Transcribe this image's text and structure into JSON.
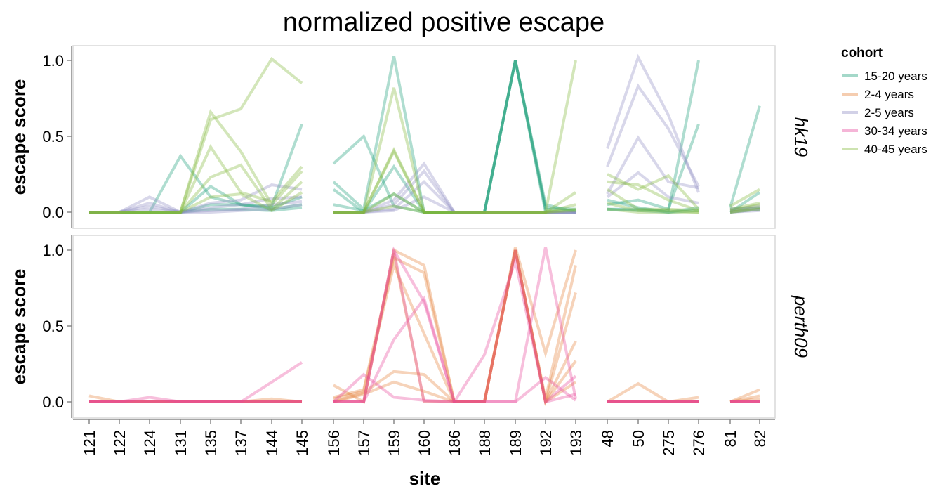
{
  "chart_data": {
    "type": "line",
    "title": "normalized positive escape",
    "xlabel": "site",
    "ylabel": "escape score",
    "ylim": [
      0,
      1.05
    ],
    "y_ticks": [
      "0.0",
      "0.5",
      "1.0"
    ],
    "legend_title": "cohort",
    "legend_position": "top-right",
    "grid": false,
    "site_groups": [
      [
        "121",
        "122",
        "124",
        "131",
        "135",
        "137",
        "144",
        "145"
      ],
      [
        "156",
        "157",
        "159",
        "160",
        "186",
        "188",
        "189",
        "192",
        "193"
      ],
      [
        "48",
        "50",
        "275",
        "276"
      ],
      [
        "81",
        "82"
      ]
    ],
    "cohorts": [
      {
        "name": "15-20 years",
        "color": "#1b9e77"
      },
      {
        "name": "2-4 years",
        "color": "#e6823a"
      },
      {
        "name": "2-5 years",
        "color": "#8f8cc4"
      },
      {
        "name": "30-34 years",
        "color": "#e7479a"
      },
      {
        "name": "40-45 years",
        "color": "#82b83a"
      }
    ],
    "facets": [
      {
        "name": "hk19",
        "series": [
          {
            "cohort": "15-20 years",
            "values": [
              [
                0,
                0,
                0,
                0.37,
                0.1,
                0.05,
                0.04,
                0.58
              ],
              [
                0.32,
                0.5,
                0.04,
                0,
                0,
                0,
                1,
                0.03,
                0.02
              ],
              [
                0.05,
                0.08,
                0.02,
                0.58
              ],
              [
                0.03,
                0.7
              ]
            ]
          },
          {
            "cohort": "15-20 years",
            "values": [
              [
                0,
                0,
                0,
                0,
                0.17,
                0.05,
                0.03,
                0.1
              ],
              [
                0.2,
                0.02,
                1.03,
                0,
                0,
                0,
                1,
                0.02,
                0.01
              ],
              [
                0.02,
                0.02,
                0.01,
                1.0
              ],
              [
                0,
                0.13
              ]
            ]
          },
          {
            "cohort": "15-20 years",
            "values": [
              [
                0,
                0,
                0,
                0,
                0.05,
                0.05,
                0.02,
                0.05
              ],
              [
                0.15,
                0,
                0.3,
                0,
                0,
                0,
                1,
                0.05,
                0
              ],
              [
                0.08,
                0.03,
                0,
                0.03
              ],
              [
                0.02,
                0.03
              ]
            ]
          },
          {
            "cohort": "15-20 years",
            "values": [
              [
                0,
                0,
                0,
                0,
                0.02,
                0.02,
                0.01,
                0.03
              ],
              [
                0.05,
                0.01,
                0.12,
                0,
                0,
                0,
                1,
                0,
                0
              ],
              [
                0.02,
                0.01,
                0,
                0.01
              ],
              [
                0,
                0.02
              ]
            ]
          },
          {
            "cohort": "2-5 years",
            "values": [
              [
                0,
                0,
                0.1,
                0,
                0.06,
                0.08,
                0.18,
                0.15
              ],
              [
                0,
                0,
                0.08,
                0.32,
                0,
                0,
                0,
                0,
                0
              ],
              [
                0.42,
                1.02,
                0.64,
                0.13
              ],
              [
                0.02,
                0.04
              ]
            ]
          },
          {
            "cohort": "2-5 years",
            "values": [
              [
                0,
                0,
                0.06,
                0,
                0.03,
                0.05,
                0.09,
                0.1
              ],
              [
                0,
                0,
                0.05,
                0.27,
                0,
                0,
                0,
                0,
                0
              ],
              [
                0.3,
                0.83,
                0.55,
                0.17
              ],
              [
                0.01,
                0.03
              ]
            ]
          },
          {
            "cohort": "2-5 years",
            "values": [
              [
                0,
                0,
                0.04,
                0,
                0.01,
                0.02,
                0.05,
                0.07
              ],
              [
                0,
                0,
                0.02,
                0.2,
                0,
                0,
                0,
                0,
                0
              ],
              [
                0.12,
                0.49,
                0.2,
                0.16
              ],
              [
                0,
                0.02
              ]
            ]
          },
          {
            "cohort": "2-5 years",
            "values": [
              [
                0,
                0,
                0.02,
                0,
                0,
                0.01,
                0.02,
                0.05
              ],
              [
                0,
                0,
                0.01,
                0.1,
                0,
                0,
                0,
                0,
                0
              ],
              [
                0.1,
                0.26,
                0.1,
                0.06
              ],
              [
                0,
                0.01
              ]
            ]
          },
          {
            "cohort": "40-45 years",
            "values": [
              [
                0,
                0,
                0,
                0,
                0.66,
                0.4,
                0.05,
                0.27
              ],
              [
                0,
                0,
                0.82,
                0,
                0,
                0,
                0,
                0,
                1.0
              ],
              [
                0.25,
                0.15,
                0.24,
                0.02
              ],
              [
                0.04,
                0.15
              ]
            ]
          },
          {
            "cohort": "40-45 years",
            "values": [
              [
                0,
                0,
                0,
                0,
                0.61,
                0.68,
                1.01,
                0.85
              ],
              [
                0,
                0,
                0.41,
                0,
                0,
                0,
                0,
                0,
                0.13
              ],
              [
                0.2,
                0.18,
                0.08,
                0.01
              ],
              [
                0.02,
                0.06
              ]
            ]
          },
          {
            "cohort": "40-45 years",
            "values": [
              [
                0,
                0,
                0,
                0,
                0.43,
                0.13,
                0.07,
                0.3
              ],
              [
                0,
                0,
                0.4,
                0,
                0,
                0,
                0,
                0,
                0.05
              ],
              [
                0.15,
                0.02,
                0.02,
                0.01
              ],
              [
                0.01,
                0.05
              ]
            ]
          },
          {
            "cohort": "40-45 years",
            "values": [
              [
                0,
                0,
                0,
                0,
                0.23,
                0.31,
                0.02,
                0.2
              ],
              [
                0,
                0,
                0.12,
                0,
                0,
                0,
                0,
                0,
                0.02
              ],
              [
                0.06,
                0.01,
                0.01,
                0
              ],
              [
                0,
                0.03
              ]
            ]
          },
          {
            "cohort": "40-45 years",
            "values": [
              [
                0,
                0,
                0,
                0,
                0.1,
                0.12,
                0.01,
                0.13
              ],
              [
                0,
                0,
                0.04,
                0,
                0,
                0,
                0,
                0,
                0.01
              ],
              [
                0.02,
                0,
                0,
                0
              ],
              [
                0,
                0.02
              ]
            ]
          }
        ]
      },
      {
        "name": "perth09",
        "series": [
          {
            "cohort": "2-4 years",
            "values": [
              [
                0.04,
                0,
                0,
                0,
                0,
                0,
                0.02,
                0
              ],
              [
                0.11,
                0,
                1.0,
                0.9,
                0,
                0,
                1.02,
                0.32,
                1.0
              ],
              [
                0,
                0.12,
                0,
                0.03
              ],
              [
                0,
                0.08
              ]
            ]
          },
          {
            "cohort": "2-4 years",
            "values": [
              [
                0,
                0,
                0,
                0,
                0,
                0,
                0,
                0
              ],
              [
                0.03,
                0.08,
                0.95,
                0.85,
                0,
                0,
                1.0,
                0.02,
                0.9
              ],
              [
                0,
                0,
                0,
                0
              ],
              [
                0,
                0.04
              ]
            ]
          },
          {
            "cohort": "2-4 years",
            "values": [
              [
                0,
                0,
                0,
                0,
                0,
                0,
                0,
                0
              ],
              [
                0.02,
                0.07,
                0.9,
                0.45,
                0,
                0,
                1.0,
                0,
                0.72
              ],
              [
                0,
                0,
                0,
                0
              ],
              [
                0,
                0.02
              ]
            ]
          },
          {
            "cohort": "2-4 years",
            "values": [
              [
                0,
                0,
                0,
                0,
                0,
                0,
                0,
                0
              ],
              [
                0,
                0.06,
                0.2,
                0.18,
                0,
                0,
                1.0,
                0,
                0.4
              ],
              [
                0,
                0,
                0,
                0
              ],
              [
                0,
                0
              ]
            ]
          },
          {
            "cohort": "2-4 years",
            "values": [
              [
                0,
                0,
                0,
                0,
                0,
                0,
                0,
                0
              ],
              [
                0,
                0.05,
                0.13,
                0.07,
                0,
                0,
                1.0,
                0,
                0.27
              ],
              [
                0,
                0,
                0,
                0
              ],
              [
                0,
                0
              ]
            ]
          },
          {
            "cohort": "2-4 years",
            "values": [
              [
                0,
                0,
                0,
                0,
                0,
                0,
                0,
                0
              ],
              [
                0,
                0,
                0.98,
                0,
                0,
                0,
                1.0,
                0,
                0.13
              ],
              [
                0,
                0,
                0,
                0
              ],
              [
                0,
                0
              ]
            ]
          },
          {
            "cohort": "30-34 years",
            "values": [
              [
                0,
                0,
                0.03,
                0,
                0,
                0,
                0.13,
                0.26
              ],
              [
                0,
                0.18,
                0.03,
                0.01,
                0,
                0.31,
                0.93,
                0,
                0.05
              ],
              [
                0,
                0,
                0,
                0
              ],
              [
                0,
                0
              ]
            ]
          },
          {
            "cohort": "30-34 years",
            "values": [
              [
                0,
                0,
                0,
                0,
                0,
                0,
                0,
                0
              ],
              [
                0,
                0,
                0.41,
                0.68,
                0,
                0,
                0,
                1.02,
                0.02
              ],
              [
                0,
                0,
                0,
                0
              ],
              [
                0,
                0
              ]
            ]
          },
          {
            "cohort": "30-34 years",
            "values": [
              [
                0,
                0,
                0,
                0,
                0,
                0,
                0,
                0
              ],
              [
                0,
                0,
                1.0,
                0,
                0,
                0,
                0,
                0.16,
                0.01
              ],
              [
                0,
                0,
                0,
                0
              ],
              [
                0,
                0
              ]
            ]
          },
          {
            "cohort": "30-34 years",
            "values": [
              [
                0,
                0,
                0,
                0,
                0,
                0,
                0,
                0
              ],
              [
                0,
                0,
                1.0,
                0.66,
                0,
                0,
                1.0,
                0,
                0.17
              ],
              [
                0,
                0,
                0,
                0
              ],
              [
                0,
                0
              ]
            ]
          }
        ]
      }
    ]
  }
}
